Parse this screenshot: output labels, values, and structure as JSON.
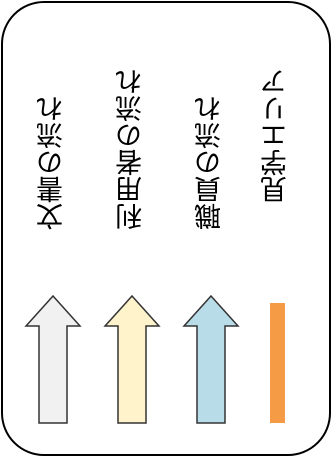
{
  "legend": {
    "items": [
      {
        "label": "文書の流れ",
        "type": "arrow",
        "fill": "#f1f1f1",
        "stroke": "#333333"
      },
      {
        "label": "利用者の流れ",
        "type": "arrow",
        "fill": "#fff3cc",
        "stroke": "#333333"
      },
      {
        "label": "職員の流れ",
        "type": "arrow",
        "fill": "#b9dde8",
        "stroke": "#333333"
      },
      {
        "label": "見学エリア",
        "type": "bar",
        "fill": "#f59a45"
      }
    ]
  }
}
